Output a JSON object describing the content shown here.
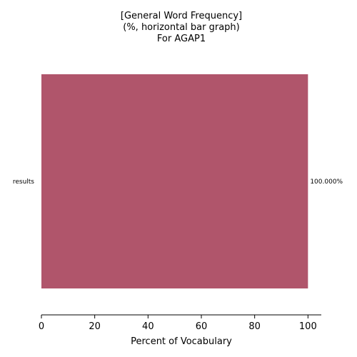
{
  "chart_data": {
    "type": "bar",
    "orientation": "horizontal",
    "title_lines": [
      "[General Word Frequency]",
      "(%, horizontal bar graph)",
      "For AGAP1"
    ],
    "categories": [
      "results"
    ],
    "values": [
      100.0
    ],
    "value_labels": [
      "100.000%"
    ],
    "xlabel": "Percent of Vocabulary",
    "ylabel": "",
    "xlim": [
      0,
      105
    ],
    "xticks": [
      0,
      20,
      40,
      60,
      80,
      100
    ],
    "xtick_labels": [
      "0",
      "20",
      "40",
      "60",
      "80",
      "100"
    ],
    "grid": false,
    "legend": "none",
    "bar_color": "#b0556b"
  }
}
